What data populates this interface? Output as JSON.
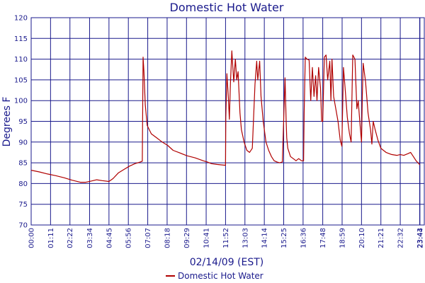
{
  "chart_data": {
    "type": "line",
    "title": "Domestic Hot Water",
    "xlabel": "02/14/09 (EST)",
    "ylabel": "Degrees F",
    "ylim": [
      70,
      120
    ],
    "yticks": [
      70,
      75,
      80,
      85,
      90,
      95,
      100,
      105,
      110,
      115,
      120
    ],
    "xlim_minutes": [
      0,
      1440
    ],
    "x_tick_labels": [
      "00:00",
      "01:11",
      "02:22",
      "03:34",
      "04:45",
      "05:56",
      "07:07",
      "08:18",
      "09:29",
      "10:41",
      "11:52",
      "13:03",
      "14:14",
      "15:25",
      "16:36",
      "17:48",
      "18:59",
      "20:10",
      "21:21",
      "22:32",
      "23:43",
      "23:44"
    ],
    "grid": true,
    "legend_position": "bottom",
    "colors": {
      "series": "#b00000",
      "grid": "#1a1a8c",
      "text": "#1a1a8c"
    },
    "series": [
      {
        "name": "Domestic Hot Water",
        "x": [
          "00:00",
          "00:30",
          "01:00",
          "01:30",
          "02:00",
          "02:30",
          "03:00",
          "03:20",
          "03:40",
          "04:00",
          "04:20",
          "04:45",
          "05:00",
          "05:20",
          "05:40",
          "06:00",
          "06:20",
          "06:40",
          "06:47",
          "06:50",
          "06:53",
          "06:58",
          "07:05",
          "07:20",
          "07:40",
          "08:00",
          "08:20",
          "08:40",
          "09:00",
          "09:30",
          "10:00",
          "10:30",
          "10:45",
          "11:00",
          "11:20",
          "11:52",
          "11:53",
          "11:57",
          "12:02",
          "12:06",
          "12:10",
          "12:15",
          "12:22",
          "12:28",
          "12:33",
          "12:38",
          "12:45",
          "12:50",
          "13:00",
          "13:10",
          "13:20",
          "13:30",
          "13:40",
          "13:46",
          "13:50",
          "13:57",
          "14:02",
          "14:10",
          "14:20",
          "14:30",
          "14:40",
          "14:50",
          "15:00",
          "15:10",
          "15:20",
          "15:30",
          "15:34",
          "15:36",
          "15:40",
          "15:50",
          "16:00",
          "16:10",
          "16:20",
          "16:30",
          "16:38",
          "16:40",
          "16:44",
          "16:50",
          "16:58",
          "17:04",
          "17:10",
          "17:16",
          "17:22",
          "17:27",
          "17:33",
          "17:40",
          "17:44",
          "17:48",
          "17:54",
          "18:00",
          "18:06",
          "18:14",
          "18:18",
          "18:22",
          "18:28",
          "18:36",
          "18:44",
          "18:52",
          "18:58",
          "19:04",
          "19:10",
          "19:18",
          "19:26",
          "19:32",
          "19:38",
          "19:46",
          "19:53",
          "19:58",
          "20:05",
          "20:10",
          "20:13",
          "20:16",
          "20:25",
          "20:34",
          "20:43",
          "20:48",
          "20:53",
          "21:00",
          "21:10",
          "21:21",
          "21:40",
          "22:00",
          "22:20",
          "22:32",
          "22:45",
          "23:00",
          "23:10",
          "23:20",
          "23:30",
          "23:44"
        ],
        "y": [
          83.2,
          82.8,
          82.3,
          81.9,
          81.4,
          80.8,
          80.3,
          80.3,
          80.6,
          80.9,
          80.7,
          80.5,
          81.2,
          82.6,
          83.4,
          84.2,
          84.8,
          85.2,
          85.4,
          110.5,
          107,
          99,
          94,
          92,
          91,
          90,
          89.2,
          88,
          87.5,
          86.7,
          86.2,
          85.5,
          85.2,
          84.8,
          84.6,
          84.4,
          96,
          106.5,
          101,
          95.5,
          104.5,
          112,
          104.5,
          110,
          105,
          107,
          97,
          93,
          90,
          88,
          87.5,
          88.5,
          104,
          109.5,
          105,
          109.5,
          101,
          95,
          90,
          88,
          86.5,
          85.5,
          85.2,
          85,
          85.2,
          105.5,
          95,
          91,
          88.5,
          86.5,
          86,
          85.5,
          86,
          85.5,
          85.5,
          97,
          110.5,
          110,
          109.8,
          100,
          108,
          101,
          106,
          100,
          108,
          103,
          95,
          95,
          110.5,
          111,
          105,
          109.5,
          100,
          110,
          101,
          98,
          95,
          90.5,
          89,
          108,
          103,
          96,
          92,
          90,
          111,
          110,
          98,
          100,
          94,
          90,
          101,
          109,
          104.5,
          97,
          93,
          89.5,
          95,
          93,
          90.5,
          88.5,
          87.5,
          87,
          86.8,
          87,
          86.8,
          87.2,
          87.5,
          86.5,
          85.5,
          84.5
        ]
      }
    ],
    "legend": [
      {
        "label": "Domestic Hot Water",
        "color": "#b00000"
      }
    ]
  }
}
